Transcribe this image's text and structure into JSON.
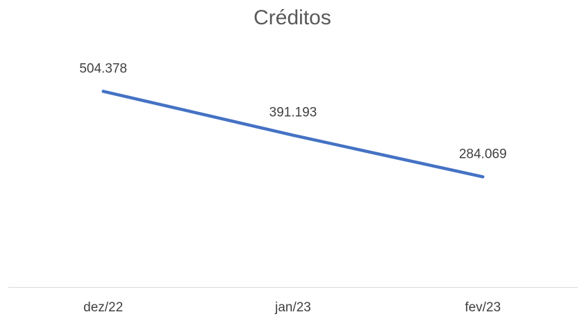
{
  "chart_data": {
    "type": "line",
    "title": "Créditos",
    "categories": [
      "dez/22",
      "jan/23",
      "fev/23"
    ],
    "values": [
      504378,
      391193,
      284069
    ],
    "value_labels": [
      "504.378",
      "391.193",
      "284.069"
    ],
    "color": "#4472c4",
    "ylim": [
      0,
      600000
    ]
  }
}
